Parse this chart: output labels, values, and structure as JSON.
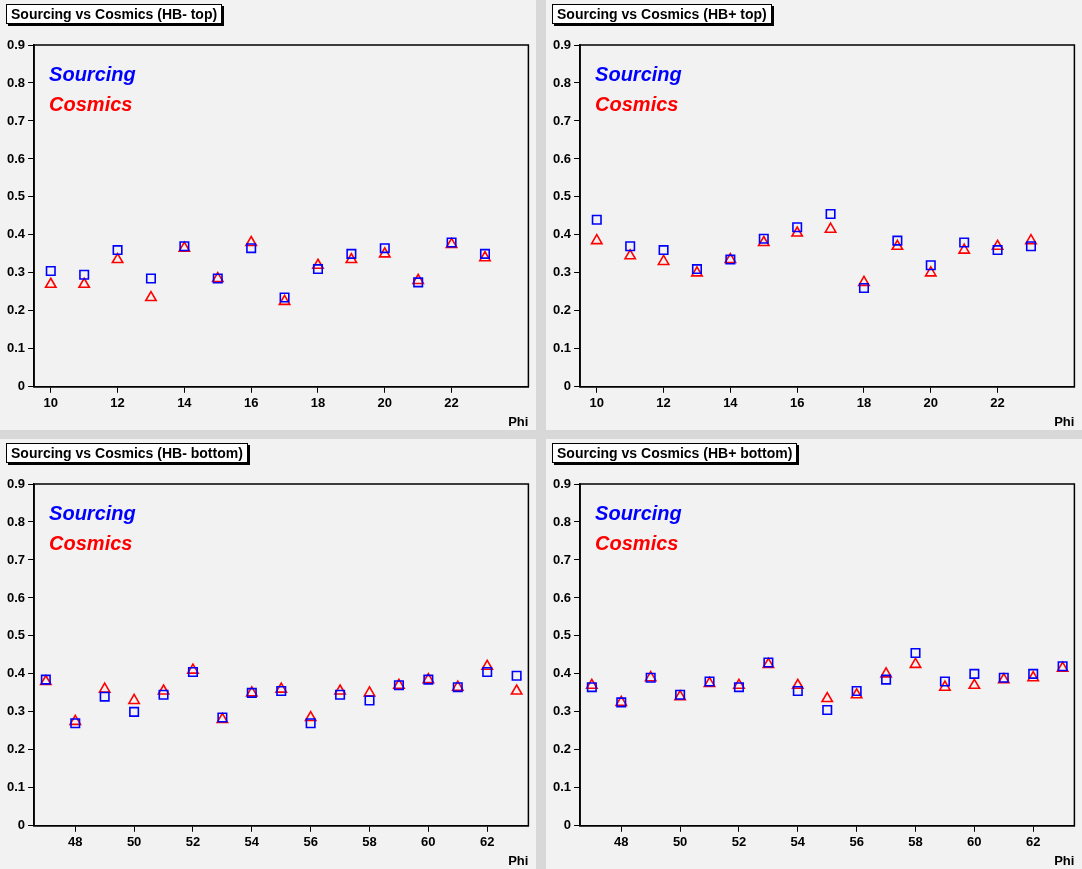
{
  "chart_data": [
    {
      "type": "scatter",
      "title": "Sourcing vs Cosmics (HB- top)",
      "xlabel": "Phi",
      "legend": "top left",
      "grid": false,
      "x": [
        10,
        11,
        12,
        13,
        14,
        15,
        16,
        17,
        18,
        19,
        20,
        21,
        22,
        23
      ],
      "xlim": [
        9.5,
        24.3
      ],
      "xticks": [
        10,
        12,
        14,
        16,
        18,
        20,
        22
      ],
      "ylim": [
        0,
        0.9
      ],
      "yticks": [
        0,
        0.1,
        0.2,
        0.3,
        0.4,
        0.5,
        0.6,
        0.7,
        0.8,
        0.9
      ],
      "series": [
        {
          "name": "Sourcing",
          "color": "#0000ff",
          "marker": "square",
          "values": [
            0.305,
            0.295,
            0.36,
            0.285,
            0.37,
            0.285,
            0.365,
            0.235,
            0.31,
            0.35,
            0.365,
            0.275,
            0.38,
            0.35
          ]
        },
        {
          "name": "Cosmics",
          "color": "#ff0000",
          "marker": "triangle",
          "values": [
            0.27,
            0.27,
            0.335,
            0.235,
            0.365,
            0.285,
            0.38,
            0.225,
            0.32,
            0.335,
            0.35,
            0.28,
            0.375,
            0.34
          ]
        }
      ]
    },
    {
      "type": "scatter",
      "title": "Sourcing vs Cosmics (HB+ top)",
      "xlabel": "Phi",
      "legend": "top left",
      "grid": false,
      "x": [
        10,
        11,
        12,
        13,
        14,
        15,
        16,
        17,
        18,
        19,
        20,
        21,
        22,
        23
      ],
      "xlim": [
        9.5,
        24.3
      ],
      "xticks": [
        10,
        12,
        14,
        16,
        18,
        20,
        22
      ],
      "ylim": [
        0,
        0.9
      ],
      "yticks": [
        0,
        0.1,
        0.2,
        0.3,
        0.4,
        0.5,
        0.6,
        0.7,
        0.8,
        0.9
      ],
      "series": [
        {
          "name": "Sourcing",
          "color": "#0000ff",
          "marker": "square",
          "values": [
            0.44,
            0.37,
            0.36,
            0.31,
            0.335,
            0.39,
            0.42,
            0.455,
            0.26,
            0.385,
            0.32,
            0.38,
            0.36,
            0.37
          ]
        },
        {
          "name": "Cosmics",
          "color": "#ff0000",
          "marker": "triangle",
          "values": [
            0.385,
            0.345,
            0.33,
            0.3,
            0.335,
            0.38,
            0.405,
            0.415,
            0.275,
            0.37,
            0.3,
            0.36,
            0.37,
            0.385
          ]
        }
      ]
    },
    {
      "type": "scatter",
      "title": "Sourcing vs Cosmics (HB- bottom)",
      "xlabel": "Phi",
      "legend": "top left",
      "grid": false,
      "x": [
        47,
        48,
        49,
        50,
        51,
        52,
        53,
        54,
        55,
        56,
        57,
        58,
        59,
        60,
        61,
        62,
        63
      ],
      "xlim": [
        46.6,
        63.4
      ],
      "xticks": [
        48,
        50,
        52,
        54,
        56,
        58,
        60,
        62
      ],
      "ylim": [
        0,
        0.9
      ],
      "yticks": [
        0,
        0.1,
        0.2,
        0.3,
        0.4,
        0.5,
        0.6,
        0.7,
        0.8,
        0.9
      ],
      "series": [
        {
          "name": "Sourcing",
          "color": "#0000ff",
          "marker": "square",
          "values": [
            0.385,
            0.27,
            0.34,
            0.3,
            0.345,
            0.405,
            0.285,
            0.35,
            0.355,
            0.27,
            0.345,
            0.33,
            0.37,
            0.385,
            0.365,
            0.405,
            0.395
          ]
        },
        {
          "name": "Cosmics",
          "color": "#ff0000",
          "marker": "triangle",
          "values": [
            0.38,
            0.275,
            0.36,
            0.33,
            0.355,
            0.41,
            0.28,
            0.35,
            0.36,
            0.285,
            0.355,
            0.35,
            0.37,
            0.385,
            0.365,
            0.42,
            0.355
          ]
        }
      ]
    },
    {
      "type": "scatter",
      "title": "Sourcing vs Cosmics (HB+ bottom)",
      "xlabel": "Phi",
      "legend": "top left",
      "grid": false,
      "x": [
        47,
        48,
        49,
        50,
        51,
        52,
        53,
        54,
        55,
        56,
        57,
        58,
        59,
        60,
        61,
        62,
        63
      ],
      "xlim": [
        46.6,
        63.4
      ],
      "xticks": [
        48,
        50,
        52,
        54,
        56,
        58,
        60,
        62
      ],
      "ylim": [
        0,
        0.9
      ],
      "yticks": [
        0,
        0.1,
        0.2,
        0.3,
        0.4,
        0.5,
        0.6,
        0.7,
        0.8,
        0.9
      ],
      "series": [
        {
          "name": "Sourcing",
          "color": "#0000ff",
          "marker": "square",
          "values": [
            0.365,
            0.325,
            0.39,
            0.345,
            0.38,
            0.365,
            0.43,
            0.355,
            0.305,
            0.355,
            0.385,
            0.455,
            0.38,
            0.4,
            0.39,
            0.4,
            0.42
          ]
        },
        {
          "name": "Cosmics",
          "color": "#ff0000",
          "marker": "triangle",
          "values": [
            0.37,
            0.325,
            0.39,
            0.34,
            0.375,
            0.37,
            0.425,
            0.37,
            0.335,
            0.345,
            0.4,
            0.425,
            0.365,
            0.37,
            0.385,
            0.39,
            0.415
          ]
        }
      ]
    }
  ]
}
